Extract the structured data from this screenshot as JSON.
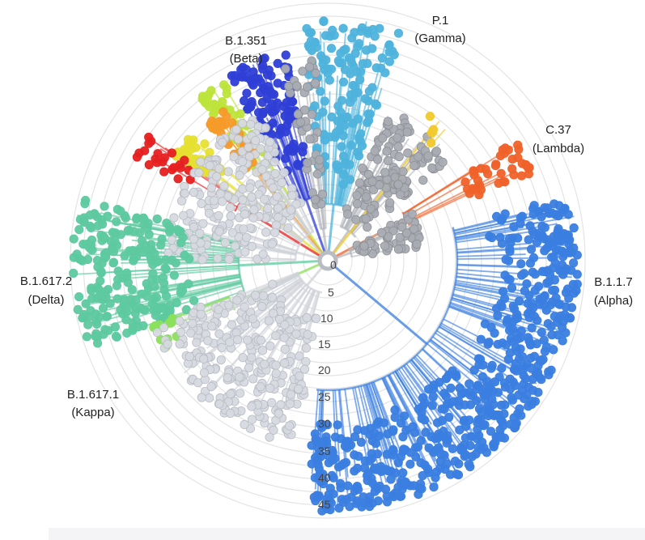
{
  "axis": {
    "ticks": [
      "0",
      "5",
      "10",
      "15",
      "20",
      "25",
      "30",
      "35",
      "40",
      "45"
    ]
  },
  "clades": [
    {
      "id": "gamma",
      "name": "P.1",
      "alias": "(Gamma)",
      "color": "#4fb3dc"
    },
    {
      "id": "beta",
      "name": "B.1.351",
      "alias": "(Beta)",
      "color": "#2f3fd6"
    },
    {
      "id": "lambda",
      "name": "C.37",
      "alias": "(Lambda)",
      "color": "#f0622a"
    },
    {
      "id": "alpha",
      "name": "B.1.1.7",
      "alias": "(Alpha)",
      "color": "#3a7ee0"
    },
    {
      "id": "delta",
      "name": "B.1.617.2",
      "alias": "(Delta)",
      "color": "#5ec9a0"
    },
    {
      "id": "kappa",
      "name": "B.1.617.1",
      "alias": "(Kappa)",
      "color": "#8be05a"
    }
  ],
  "colors": {
    "grey": "#a9acb3",
    "light_grey": "#d6d9df",
    "red": "#e62020",
    "yellow": "#e6e032",
    "orange": "#f59a2a",
    "lime": "#bde43a",
    "gold": "#f2c82b",
    "ring": "#e4e4e4"
  }
}
